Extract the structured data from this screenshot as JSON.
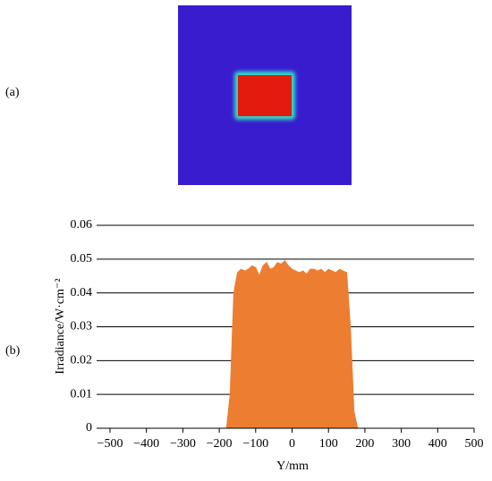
{
  "panel_labels": {
    "a": "(a)",
    "b": "(b)"
  },
  "chart_data": {
    "type": "area",
    "x": [
      -180,
      -170,
      -160,
      -150,
      -140,
      -130,
      -120,
      -110,
      -100,
      -90,
      -80,
      -70,
      -60,
      -50,
      -40,
      -30,
      -20,
      -10,
      0,
      10,
      20,
      30,
      40,
      50,
      60,
      70,
      80,
      90,
      100,
      110,
      120,
      130,
      140,
      150,
      160,
      170,
      180
    ],
    "values": [
      0,
      0.01,
      0.04,
      0.046,
      0.047,
      0.0465,
      0.047,
      0.048,
      0.0475,
      0.045,
      0.048,
      0.049,
      0.047,
      0.0475,
      0.049,
      0.0485,
      0.0495,
      0.048,
      0.047,
      0.0465,
      0.046,
      0.0465,
      0.0455,
      0.047,
      0.047,
      0.0465,
      0.047,
      0.046,
      0.047,
      0.0465,
      0.046,
      0.047,
      0.0465,
      0.046,
      0.03,
      0.005,
      0
    ],
    "color": "#ed7d31",
    "xlabel": "Y/mm",
    "ylabel": "Irradiance/W·cm⁻²",
    "xlim": [
      -500,
      500
    ],
    "xticks": [
      {
        "value": -500,
        "label": "−500"
      },
      {
        "value": -400,
        "label": "−400"
      },
      {
        "value": -300,
        "label": "−300"
      },
      {
        "value": -200,
        "label": "−200"
      },
      {
        "value": -100,
        "label": "−100"
      },
      0,
      100,
      200,
      300,
      400,
      500
    ],
    "ylim": [
      0,
      0.06
    ],
    "yticks": [
      0,
      0.01,
      0.02,
      0.03,
      0.04,
      0.05,
      0.06
    ],
    "grid": true
  }
}
